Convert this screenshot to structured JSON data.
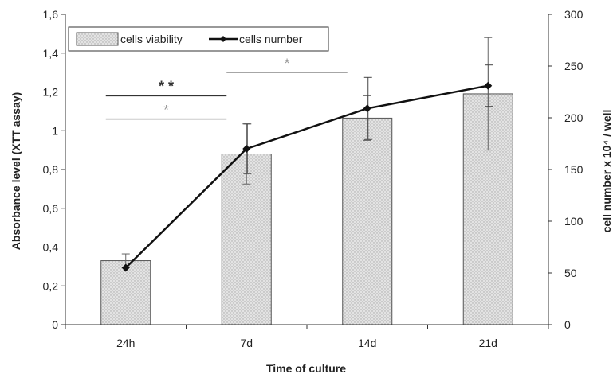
{
  "chart_data": {
    "type": "bar",
    "categories": [
      "24h",
      "7d",
      "14d",
      "21d"
    ],
    "xlabel": "Time of culture",
    "ylabel": "Absorbance level (XTT assay)",
    "y2label": "cell number x 10⁴ / well",
    "ylim": [
      0,
      1.6
    ],
    "y2lim": [
      0,
      300
    ],
    "yticks": [
      "0",
      "0,2",
      "0,4",
      "0,6",
      "0,8",
      "1",
      "1,2",
      "1,4",
      "1,6"
    ],
    "y2ticks": [
      "0",
      "50",
      "100",
      "150",
      "200",
      "250",
      "300"
    ],
    "grid": false,
    "legend_position": "top-left",
    "series": [
      {
        "name": "cells viability",
        "type": "bar",
        "axis": "left",
        "values": [
          0.33,
          0.88,
          1.065,
          1.19
        ],
        "error": [
          0.035,
          0.155,
          0.115,
          0.29
        ]
      },
      {
        "name": "cells number",
        "type": "line",
        "axis": "right",
        "values": [
          55,
          170,
          209,
          231
        ],
        "error": [
          0,
          24,
          30,
          20
        ]
      }
    ],
    "significance": [
      {
        "from": "24h",
        "to": "7d",
        "label": "* *",
        "level": 1.18,
        "color": "#333333"
      },
      {
        "from": "24h",
        "to": "7d",
        "label": "*",
        "level": 1.06,
        "color": "#999999"
      },
      {
        "from": "7d",
        "to": "14d",
        "label": "*",
        "level": 1.3,
        "color": "#999999"
      }
    ],
    "colors": {
      "bar_fill": "#dcdcdc",
      "bar_stroke": "#555555",
      "line": "#111111",
      "axis": "#333333"
    }
  }
}
